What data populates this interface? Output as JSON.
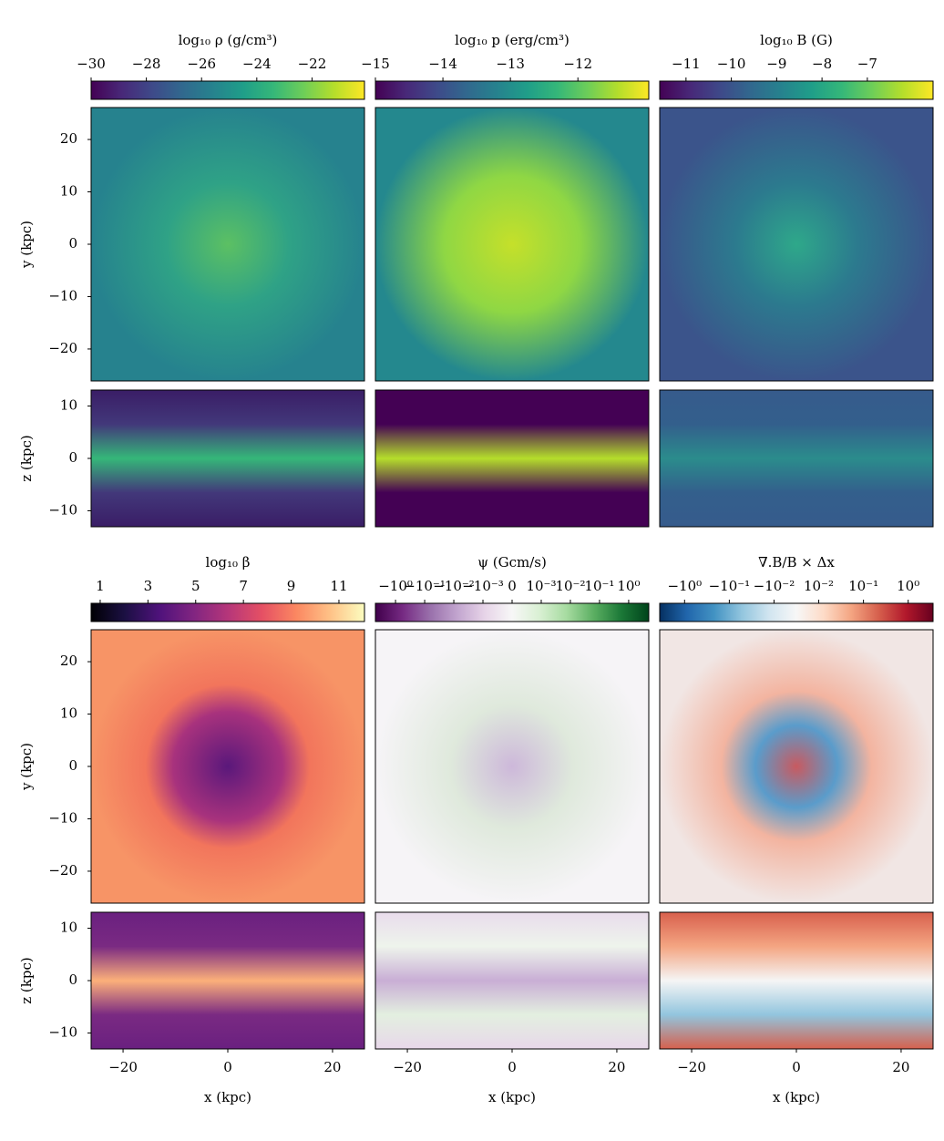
{
  "chart_data": [
    {
      "type": "heatmap",
      "colorbar_label": "log₁₀ ρ (g/cm³)",
      "cmap": "viridis",
      "scale": "linear",
      "clim": [
        -30,
        -20.1
      ],
      "cticks": [
        {
          "value": -30,
          "label": "−30"
        },
        {
          "value": -28,
          "label": "−28"
        },
        {
          "value": -26,
          "label": "−26"
        },
        {
          "value": -24,
          "label": "−24"
        },
        {
          "value": -22,
          "label": "−22"
        }
      ],
      "ylabel": "y (kpc)",
      "ylim": [
        -26.1,
        26.1
      ],
      "yticks": [
        20,
        10,
        0,
        {
          "value": -10,
          "label": "−10"
        },
        {
          "value": -20,
          "label": "−20"
        }
      ],
      "zlabel": "z (kpc)",
      "zlim": [
        -13.05,
        13.05
      ],
      "zticks": [
        10,
        0,
        {
          "value": -10,
          "label": "−10"
        }
      ]
    },
    {
      "type": "heatmap",
      "colorbar_label": "log₁₀ p (erg/cm³)",
      "cmap": "viridis",
      "scale": "linear",
      "clim": [
        -15,
        -10.95
      ],
      "cticks": [
        {
          "value": -15,
          "label": "−15"
        },
        {
          "value": -14,
          "label": "−14"
        },
        {
          "value": -13,
          "label": "−13"
        },
        {
          "value": -12,
          "label": "−12"
        }
      ]
    },
    {
      "type": "heatmap",
      "colorbar_label": "log₁₀ B (G)",
      "cmap": "viridis",
      "scale": "linear",
      "clim": [
        -11.58,
        -5.55
      ],
      "cticks": [
        {
          "value": -11,
          "label": "−11"
        },
        {
          "value": -10,
          "label": "−10"
        },
        {
          "value": -9,
          "label": "−9"
        },
        {
          "value": -8,
          "label": "−8"
        },
        {
          "value": -7,
          "label": "−7"
        }
      ]
    },
    {
      "type": "heatmap",
      "colorbar_label": "log₁₀ β",
      "cmap": "magma",
      "scale": "linear",
      "clim": [
        0.62,
        12.07
      ],
      "cticks": [
        1,
        3,
        5,
        7,
        9,
        11
      ],
      "ylabel": "y (kpc)",
      "ylim": [
        -26.1,
        26.1
      ],
      "yticks": [
        20,
        10,
        0,
        {
          "value": -10,
          "label": "−10"
        },
        {
          "value": -20,
          "label": "−20"
        }
      ],
      "zlabel": "z (kpc)",
      "zlim": [
        -13.05,
        13.05
      ],
      "zticks": [
        10,
        0,
        {
          "value": -10,
          "label": "−10"
        }
      ],
      "xlabel": "x (kpc)",
      "xlim": [
        -26.1,
        26.1
      ],
      "xticks": [
        {
          "value": -20,
          "label": "−20"
        },
        0,
        20
      ]
    },
    {
      "type": "heatmap",
      "colorbar_label": "ψ (Gcm/s)",
      "cmap": "PRGn",
      "scale": "symlog",
      "linthresh": 0.001,
      "linscale": 1,
      "clim": [
        -4.9,
        4.9
      ],
      "cticks": [
        {
          "value": -1,
          "label": "−10⁰"
        },
        {
          "value": -0.1,
          "label": "−10⁻¹"
        },
        {
          "value": -0.01,
          "label": "−10⁻²"
        },
        {
          "value": -0.001,
          "label": "−10⁻³"
        },
        0,
        {
          "value": 0.001,
          "label": "10⁻³"
        },
        {
          "value": 0.01,
          "label": "10⁻²"
        },
        {
          "value": 0.1,
          "label": "10⁻¹"
        },
        {
          "value": 1,
          "label": "10⁰"
        }
      ],
      "xlabel": "x (kpc)",
      "xlim": [
        -26.1,
        26.1
      ],
      "xticks": [
        {
          "value": -20,
          "label": "−20"
        },
        0,
        20
      ]
    },
    {
      "type": "heatmap",
      "colorbar_label": "∇.B/B × Δx",
      "cmap": "RdBu_r",
      "scale": "symlog",
      "linthresh": 0.01,
      "linscale": 0.5,
      "clim": [
        -3.6,
        3.6
      ],
      "cticks": [
        {
          "value": -1,
          "label": "−10⁰"
        },
        {
          "value": -0.1,
          "label": "−10⁻¹"
        },
        {
          "value": -0.01,
          "label": "−10⁻²"
        },
        {
          "value": 0.01,
          "label": "10⁻²"
        },
        {
          "value": 0.1,
          "label": "10⁻¹"
        },
        {
          "value": 1,
          "label": "10⁰"
        }
      ],
      "xlabel": "x (kpc)",
      "xlim": [
        -26.1,
        26.1
      ],
      "xticks": [
        {
          "value": -20,
          "label": "−20"
        },
        0,
        20
      ]
    }
  ]
}
